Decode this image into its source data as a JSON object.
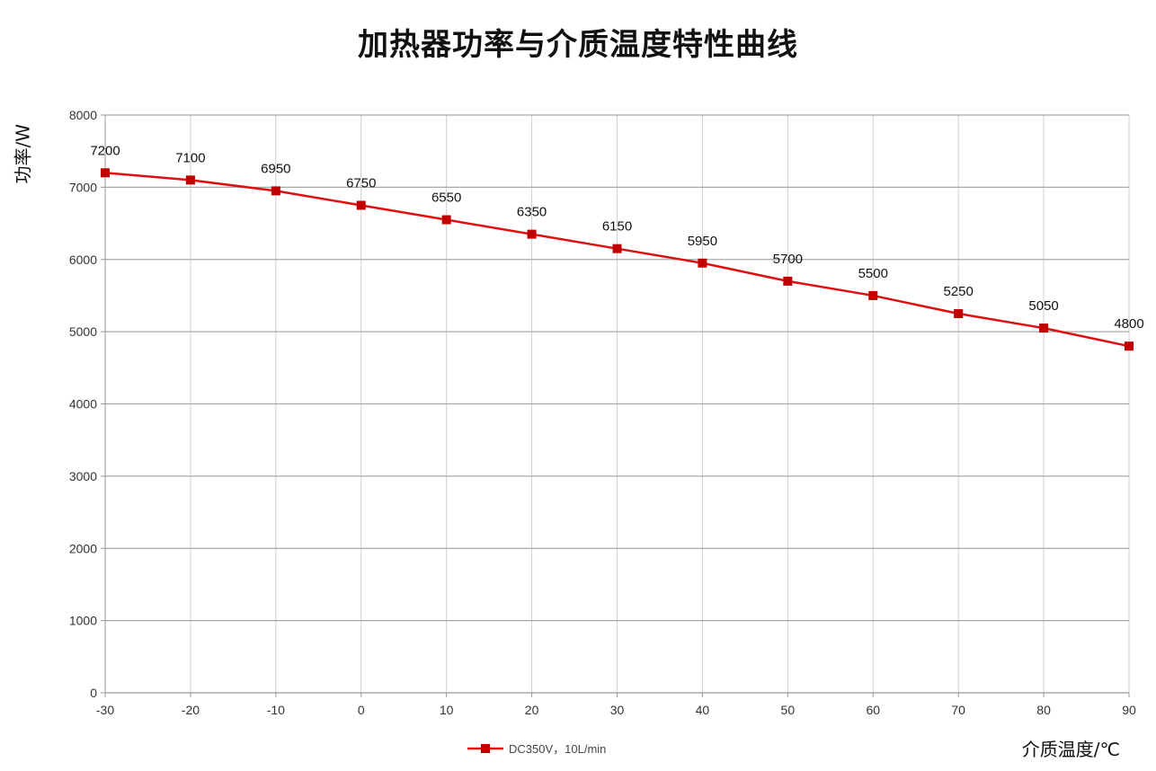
{
  "chart_data": {
    "type": "line",
    "title": "加热器功率与介质温度特性曲线",
    "xlabel": "介质温度/℃",
    "ylabel": "功率/W",
    "x": [
      -30,
      -20,
      -10,
      0,
      10,
      20,
      30,
      40,
      50,
      60,
      70,
      80,
      90
    ],
    "xticks": [
      "-30",
      "-20",
      "-10",
      "0",
      "10",
      "20",
      "30",
      "40",
      "50",
      "60",
      "70",
      "80",
      "90"
    ],
    "yticks": [
      "0",
      "1000",
      "2000",
      "3000",
      "4000",
      "5000",
      "6000",
      "7000",
      "8000"
    ],
    "xlim": [
      -30,
      90
    ],
    "ylim": [
      0,
      8000
    ],
    "grid": true,
    "legend_position": "bottom",
    "series": [
      {
        "name": "DC350V，10L/min",
        "color": "#e01010",
        "marker_color": "#c00000",
        "values": [
          7200,
          7100,
          6950,
          6750,
          6550,
          6350,
          6150,
          5950,
          5700,
          5500,
          5250,
          5050,
          4800
        ],
        "labels": [
          "7200",
          "7100",
          "6950",
          "6750",
          "6550",
          "6350",
          "6150",
          "5950",
          "5700",
          "5500",
          "5250",
          "5050",
          "4800"
        ]
      }
    ]
  }
}
